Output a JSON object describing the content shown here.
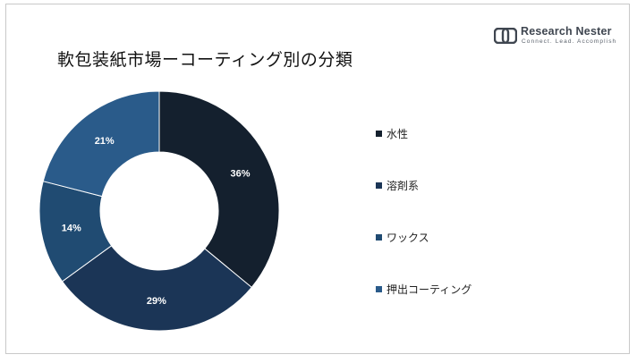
{
  "brand": {
    "name": "Research Nester",
    "tagline": "Connect. Lead. Accomplish"
  },
  "chart_data": {
    "type": "pie",
    "variant": "donut",
    "title": "軟包装紙市場ーコーティング別の分類",
    "categories": [
      "水性",
      "溶剤系",
      "ワックス",
      "押出コーティング"
    ],
    "values": [
      36,
      29,
      14,
      21
    ],
    "value_labels": [
      "36%",
      "29%",
      "14%",
      "21%"
    ],
    "colors": [
      "#14202e",
      "#1b3556",
      "#204b72",
      "#2a5b8a"
    ],
    "legend_position": "right",
    "data_label_color": "#ffffff"
  }
}
